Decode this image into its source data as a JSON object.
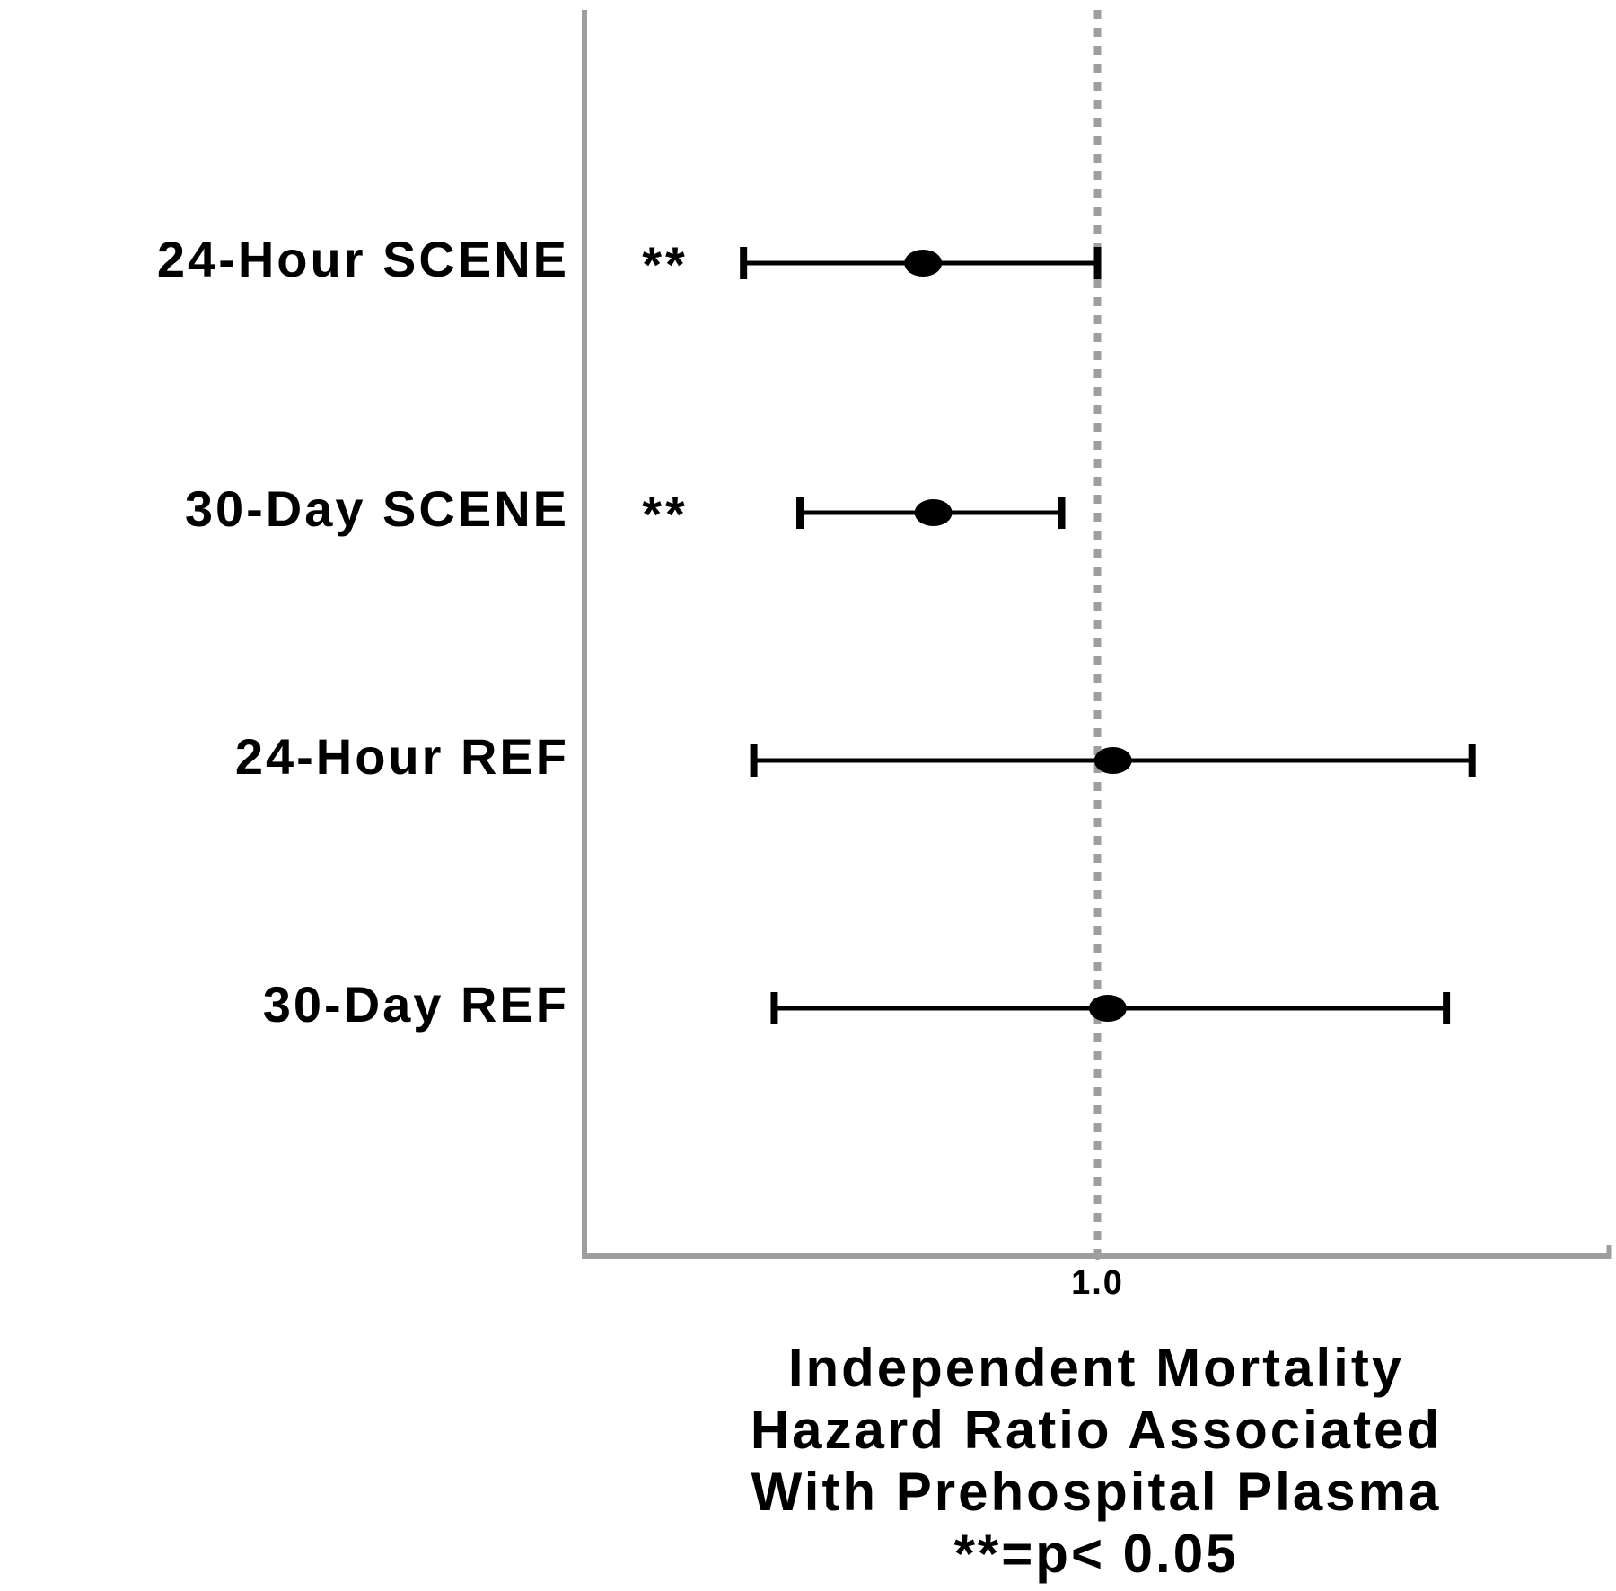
{
  "chart_data": {
    "type": "forest",
    "categories": [
      "24-Hour SCENE",
      "30-Day SCENE",
      "24-Hour REF",
      "30-Day REF"
    ],
    "values": [
      0.66,
      0.68,
      1.03,
      1.02
    ],
    "ci_lower": [
      0.31,
      0.42,
      0.33,
      0.37
    ],
    "ci_upper": [
      1.0,
      0.93,
      1.73,
      1.68
    ],
    "significance": [
      "**",
      "**",
      null,
      null
    ],
    "color": "#000000",
    "axis_color": "#9e9e9e",
    "reference_line": 1.0,
    "xlim": [
      0,
      2
    ],
    "xticks": [
      {
        "value": 1.0,
        "label": "1.0"
      }
    ],
    "xlabel": [
      "Independent Mortality",
      "Hazard Ratio Associated",
      "With Prehospital Plasma",
      "**=p< 0.05"
    ]
  }
}
